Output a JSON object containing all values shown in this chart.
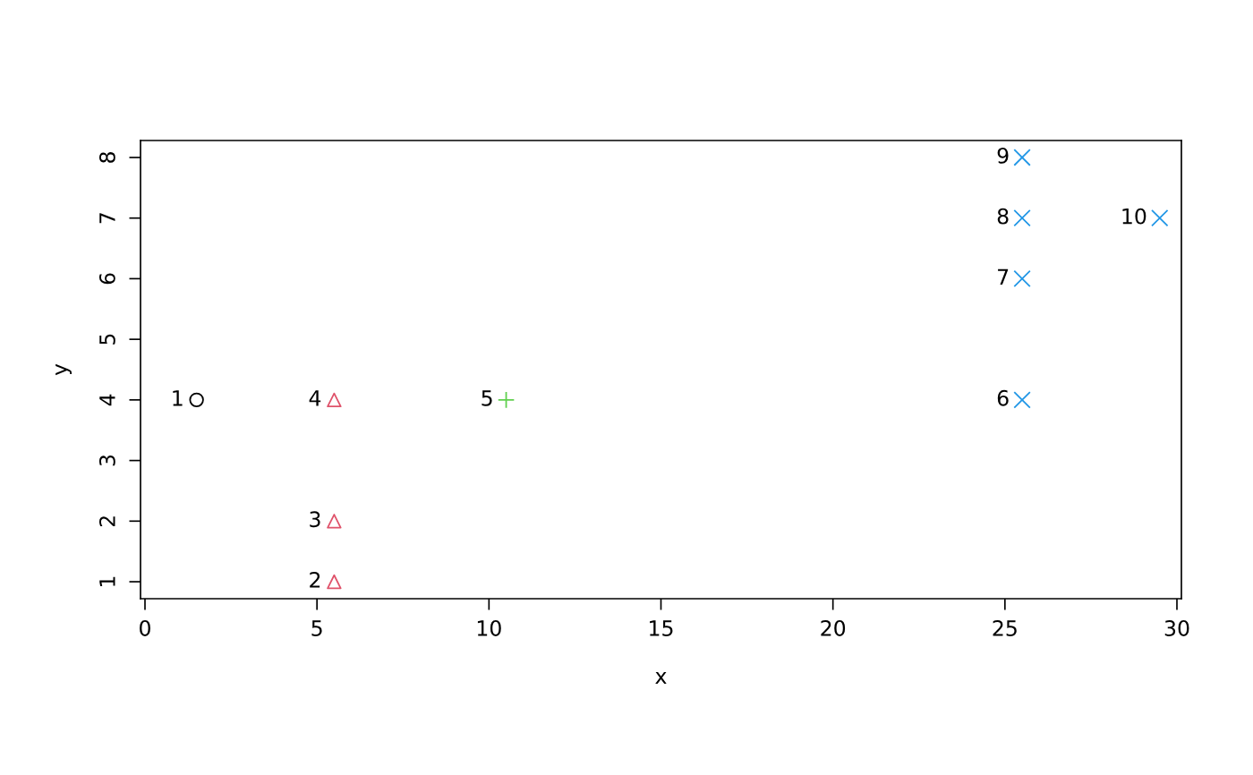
{
  "chart_data": {
    "type": "scatter",
    "xlabel": "x",
    "ylabel": "y",
    "xlim": [
      -0.13,
      30.13
    ],
    "ylim": [
      0.72,
      8.28
    ],
    "xticks": [
      0,
      5,
      10,
      15,
      20,
      25,
      30
    ],
    "yticks": [
      1,
      2,
      3,
      4,
      5,
      6,
      7,
      8
    ],
    "grid": false,
    "legend": false,
    "series": [
      {
        "color": "#000000",
        "marker": "circle",
        "x": [
          1.5
        ],
        "values": [
          4
        ]
      },
      {
        "color": "#df536b",
        "marker": "triangle",
        "x": [
          5.5,
          5.5,
          5.5
        ],
        "values": [
          1,
          2,
          4
        ]
      },
      {
        "color": "#61d04f",
        "marker": "plus",
        "x": [
          10.5
        ],
        "values": [
          4
        ]
      },
      {
        "color": "#2297e6",
        "marker": "cross",
        "x": [
          25.5,
          25.5,
          25.5,
          25.5,
          29.5
        ],
        "values": [
          4,
          6,
          7,
          8,
          7
        ]
      }
    ],
    "annotations": [
      {
        "text": "1",
        "x": 1.5,
        "y": 4
      },
      {
        "text": "2",
        "x": 5.5,
        "y": 1
      },
      {
        "text": "3",
        "x": 5.5,
        "y": 2
      },
      {
        "text": "4",
        "x": 5.5,
        "y": 4
      },
      {
        "text": "5",
        "x": 10.5,
        "y": 4
      },
      {
        "text": "6",
        "x": 25.5,
        "y": 4
      },
      {
        "text": "7",
        "x": 25.5,
        "y": 6
      },
      {
        "text": "8",
        "x": 25.5,
        "y": 7
      },
      {
        "text": "9",
        "x": 25.5,
        "y": 8
      },
      {
        "text": "10",
        "x": 29.5,
        "y": 7
      }
    ]
  }
}
